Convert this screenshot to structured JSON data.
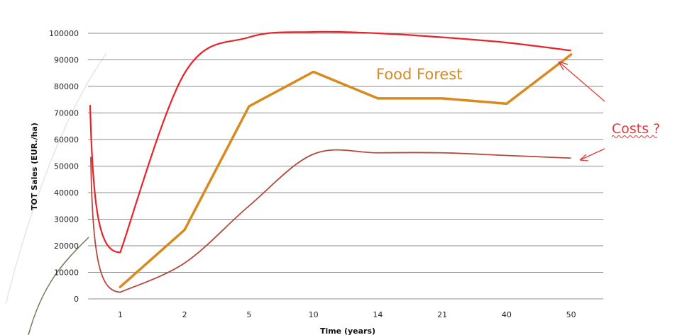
{
  "chart_data": {
    "type": "line",
    "xlabel": "Time (years)",
    "ylabel": "TOT Sales (EUR./ha)",
    "categories": [
      "1",
      "2",
      "5",
      "10",
      "14",
      "21",
      "40",
      "50"
    ],
    "ylim": [
      0,
      100000
    ],
    "yticks": [
      "0",
      "10000",
      "20000",
      "30000",
      "40000",
      "50000",
      "60000",
      "70000",
      "80000",
      "90000",
      "100000"
    ],
    "grid": "horizontal",
    "series": [
      {
        "key": "food_forest",
        "values": [
          4500,
          26000,
          72500,
          85500,
          75500,
          75500,
          73500,
          92000
        ]
      },
      {
        "key": "upper_curve",
        "values": [
          17500,
          85000,
          98500,
          100500,
          100000,
          98500,
          96500,
          93500
        ]
      },
      {
        "key": "lower_curve",
        "values": [
          2500,
          13500,
          35000,
          54500,
          55000,
          55000,
          54000,
          53000
        ]
      }
    ],
    "annotations": [
      {
        "name": "food-forest-label",
        "text": "Food Forest"
      },
      {
        "name": "costs-label",
        "text": "Costs ?"
      }
    ]
  },
  "colors": {
    "food_forest": "#d98a1f",
    "upper_curve": "#e8232a",
    "lower_curve": "#b4493c",
    "grid": "#8c8c8c",
    "annotation_red": "#e23a3a",
    "decor_line": "#6e7a5a"
  }
}
